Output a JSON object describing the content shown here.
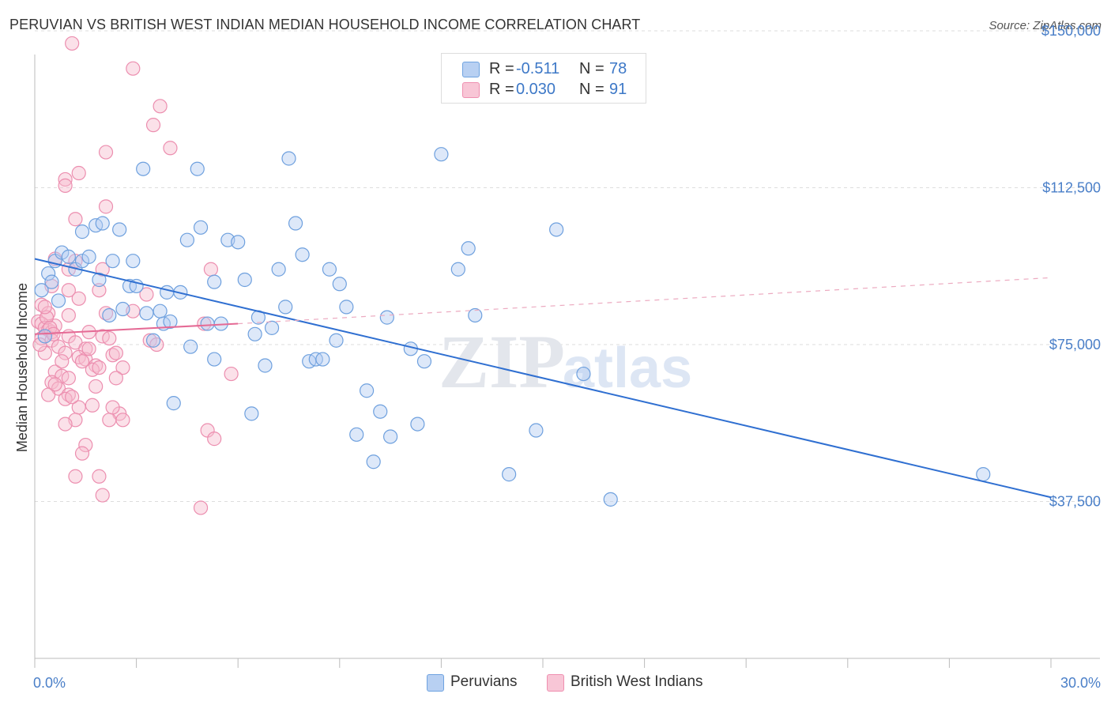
{
  "title": "PERUVIAN VS BRITISH WEST INDIAN MEDIAN HOUSEHOLD INCOME CORRELATION CHART",
  "source": "Source: ZipAtlas.com",
  "legend": {
    "row1": {
      "r_label": "R =",
      "r_value": "-0.511",
      "n_label": "N =",
      "n_value": "78"
    },
    "row2": {
      "r_label": "R =",
      "r_value": "0.030",
      "n_label": "N =",
      "n_value": "91"
    }
  },
  "bottom_legend": {
    "series1": "Peruvians",
    "series2": "British West Indians"
  },
  "colors": {
    "blue": "#6fa3e0",
    "blue_line": "#2f6fd1",
    "pink": "#ef8fb0",
    "pink_line": "#e56a95",
    "axis_text": "#4a7fc8"
  },
  "chart_data": {
    "type": "scatter",
    "ylabel": "Median Household Income",
    "xlabel": "",
    "xlim": [
      0,
      30
    ],
    "ylim": [
      0,
      157000
    ],
    "x_tick_labels": [
      "0.0%",
      "30.0%"
    ],
    "y_ticks": [
      37500,
      75000,
      112500,
      150000
    ],
    "y_tick_labels": [
      "$37,500",
      "$75,000",
      "$112,500",
      "$150,000"
    ],
    "grid": "horizontal dashed",
    "legend_position": "top-center",
    "series": [
      {
        "name": "Peruvians",
        "color": "#6fa3e0",
        "trend": {
          "x": [
            0,
            30
          ],
          "y": [
            95500,
            38500
          ],
          "style": "solid"
        },
        "points": [
          [
            0.4,
            92000
          ],
          [
            0.6,
            95000
          ],
          [
            0.8,
            97000
          ],
          [
            1.0,
            96000
          ],
          [
            1.2,
            93000
          ],
          [
            1.4,
            95000
          ],
          [
            1.4,
            102000
          ],
          [
            1.6,
            96000
          ],
          [
            1.8,
            103500
          ],
          [
            1.9,
            90500
          ],
          [
            2.0,
            104000
          ],
          [
            2.2,
            82000
          ],
          [
            2.3,
            95000
          ],
          [
            2.5,
            102500
          ],
          [
            2.6,
            83500
          ],
          [
            2.8,
            89000
          ],
          [
            2.9,
            95000
          ],
          [
            3.0,
            89000
          ],
          [
            3.2,
            117000
          ],
          [
            3.3,
            82500
          ],
          [
            3.5,
            76000
          ],
          [
            3.7,
            83000
          ],
          [
            3.8,
            80000
          ],
          [
            3.9,
            87500
          ],
          [
            4.0,
            80500
          ],
          [
            4.1,
            61000
          ],
          [
            4.3,
            87500
          ],
          [
            4.5,
            100000
          ],
          [
            4.6,
            74500
          ],
          [
            4.8,
            117000
          ],
          [
            4.9,
            103000
          ],
          [
            5.1,
            80000
          ],
          [
            5.3,
            90000
          ],
          [
            5.3,
            71500
          ],
          [
            5.5,
            80000
          ],
          [
            5.7,
            100000
          ],
          [
            6.0,
            99500
          ],
          [
            6.2,
            90500
          ],
          [
            6.4,
            58500
          ],
          [
            6.5,
            77500
          ],
          [
            6.6,
            81500
          ],
          [
            6.8,
            70000
          ],
          [
            7.0,
            79000
          ],
          [
            7.2,
            93000
          ],
          [
            7.4,
            84000
          ],
          [
            7.5,
            119500
          ],
          [
            7.7,
            104000
          ],
          [
            7.9,
            96500
          ],
          [
            8.1,
            71000
          ],
          [
            8.3,
            71500
          ],
          [
            8.5,
            71500
          ],
          [
            8.7,
            93000
          ],
          [
            8.9,
            76000
          ],
          [
            9.0,
            89500
          ],
          [
            9.2,
            84000
          ],
          [
            9.5,
            53500
          ],
          [
            9.8,
            64000
          ],
          [
            10.0,
            47000
          ],
          [
            10.2,
            59000
          ],
          [
            10.4,
            81500
          ],
          [
            10.5,
            53000
          ],
          [
            11.1,
            74000
          ],
          [
            11.3,
            56000
          ],
          [
            11.5,
            71000
          ],
          [
            12.0,
            120500
          ],
          [
            12.5,
            93000
          ],
          [
            12.8,
            98000
          ],
          [
            13.0,
            82000
          ],
          [
            14.0,
            44000
          ],
          [
            14.8,
            54500
          ],
          [
            15.4,
            102500
          ],
          [
            16.2,
            68000
          ],
          [
            17.0,
            38000
          ],
          [
            28.0,
            44000
          ],
          [
            0.2,
            88000
          ],
          [
            0.3,
            77000
          ],
          [
            0.5,
            90000
          ],
          [
            0.7,
            85500
          ]
        ]
      },
      {
        "name": "British West Indians",
        "color": "#ef8fb0",
        "trend": {
          "x": [
            0,
            6
          ],
          "y": [
            77500,
            80000
          ],
          "style": "solid"
        },
        "trend_extension": {
          "x": [
            6,
            30
          ],
          "y": [
            80000,
            91000
          ],
          "style": "dashed"
        },
        "points": [
          [
            1.1,
            147000
          ],
          [
            2.9,
            141000
          ],
          [
            3.5,
            127500
          ],
          [
            3.7,
            132000
          ],
          [
            4.0,
            122000
          ],
          [
            2.1,
            121000
          ],
          [
            1.3,
            116000
          ],
          [
            0.9,
            114500
          ],
          [
            0.9,
            113000
          ],
          [
            2.1,
            108000
          ],
          [
            1.2,
            105000
          ],
          [
            0.6,
            95500
          ],
          [
            1.0,
            93000
          ],
          [
            1.2,
            95000
          ],
          [
            2.0,
            93000
          ],
          [
            5.2,
            93000
          ],
          [
            0.5,
            89000
          ],
          [
            1.0,
            88000
          ],
          [
            1.9,
            88000
          ],
          [
            3.3,
            87000
          ],
          [
            1.3,
            86000
          ],
          [
            0.2,
            84500
          ],
          [
            0.4,
            82500
          ],
          [
            1.0,
            82000
          ],
          [
            2.1,
            82500
          ],
          [
            2.9,
            83000
          ],
          [
            0.1,
            80500
          ],
          [
            0.2,
            80000
          ],
          [
            0.3,
            79000
          ],
          [
            0.4,
            78500
          ],
          [
            0.5,
            78000
          ],
          [
            0.6,
            79500
          ],
          [
            1.0,
            77000
          ],
          [
            1.6,
            78000
          ],
          [
            2.0,
            77000
          ],
          [
            0.2,
            76500
          ],
          [
            0.5,
            76000
          ],
          [
            0.7,
            74500
          ],
          [
            1.2,
            75500
          ],
          [
            1.5,
            74000
          ],
          [
            2.2,
            76500
          ],
          [
            3.4,
            76000
          ],
          [
            3.6,
            75000
          ],
          [
            5.0,
            80000
          ],
          [
            0.3,
            73000
          ],
          [
            0.9,
            73000
          ],
          [
            1.3,
            72000
          ],
          [
            1.5,
            71500
          ],
          [
            1.8,
            70000
          ],
          [
            2.3,
            72500
          ],
          [
            0.6,
            68500
          ],
          [
            0.8,
            67500
          ],
          [
            1.0,
            67000
          ],
          [
            1.7,
            69000
          ],
          [
            2.6,
            69500
          ],
          [
            0.5,
            66000
          ],
          [
            0.7,
            64500
          ],
          [
            1.0,
            63000
          ],
          [
            1.8,
            65000
          ],
          [
            2.4,
            67000
          ],
          [
            0.4,
            63000
          ],
          [
            0.9,
            62000
          ],
          [
            1.3,
            60000
          ],
          [
            1.7,
            60500
          ],
          [
            2.5,
            58500
          ],
          [
            2.2,
            57000
          ],
          [
            1.2,
            57000
          ],
          [
            0.9,
            56000
          ],
          [
            5.1,
            54500
          ],
          [
            5.3,
            52500
          ],
          [
            1.5,
            51000
          ],
          [
            1.4,
            49000
          ],
          [
            1.2,
            43500
          ],
          [
            1.9,
            43500
          ],
          [
            2.0,
            39000
          ],
          [
            4.9,
            36000
          ],
          [
            5.8,
            68000
          ],
          [
            0.15,
            75000
          ],
          [
            0.35,
            81500
          ],
          [
            0.45,
            79000
          ],
          [
            0.55,
            77500
          ],
          [
            1.9,
            69500
          ],
          [
            2.4,
            73000
          ],
          [
            1.6,
            74000
          ],
          [
            0.8,
            71000
          ],
          [
            2.6,
            57000
          ],
          [
            1.1,
            62500
          ],
          [
            0.3,
            84000
          ],
          [
            0.6,
            65500
          ],
          [
            1.4,
            71000
          ],
          [
            2.3,
            60000
          ]
        ]
      }
    ]
  }
}
